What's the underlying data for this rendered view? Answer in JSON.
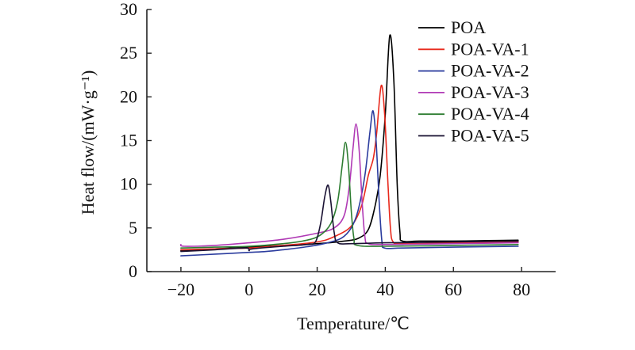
{
  "chart_data": {
    "type": "line",
    "xlabel": "Temperature/℃",
    "ylabel": "Heat flow/(mW·g⁻¹)",
    "xlim": [
      -30,
      90
    ],
    "ylim": [
      0,
      30
    ],
    "xticks": [
      -20,
      0,
      20,
      40,
      60,
      80
    ],
    "yticks": [
      0,
      5,
      10,
      15,
      20,
      25,
      30
    ],
    "xtick_labels": [
      "−20",
      "0",
      "20",
      "40",
      "60",
      "80"
    ],
    "ytick_labels": [
      "0",
      "5",
      "10",
      "15",
      "20",
      "25",
      "30"
    ],
    "grid": false,
    "legend": "top-right",
    "series": [
      {
        "name": "POA",
        "color": "#000000",
        "points": [
          [
            -20,
            2.4
          ],
          [
            -10,
            2.6
          ],
          [
            0,
            2.8
          ],
          [
            10,
            3.0
          ],
          [
            20,
            3.2
          ],
          [
            28,
            3.5
          ],
          [
            32,
            3.8
          ],
          [
            35,
            4.8
          ],
          [
            37,
            7.5
          ],
          [
            38.5,
            11
          ],
          [
            40,
            18
          ],
          [
            41.3,
            27.0
          ],
          [
            42.5,
            22
          ],
          [
            43.5,
            10
          ],
          [
            44.3,
            4.5
          ],
          [
            45,
            3.5
          ],
          [
            50,
            3.5
          ],
          [
            60,
            3.5
          ],
          [
            70,
            3.55
          ],
          [
            79,
            3.6
          ]
        ]
      },
      {
        "name": "POA-VA-1",
        "color": "#e8291c",
        "points": [
          [
            -20,
            2.5
          ],
          [
            -10,
            2.6
          ],
          [
            0,
            2.7
          ],
          [
            10,
            3.0
          ],
          [
            20,
            3.4
          ],
          [
            25,
            4.0
          ],
          [
            30,
            5.2
          ],
          [
            33,
            7.5
          ],
          [
            35,
            11
          ],
          [
            36.5,
            13
          ],
          [
            37.5,
            16
          ],
          [
            38.8,
            21.3
          ],
          [
            39.8,
            18
          ],
          [
            40.8,
            10
          ],
          [
            41.5,
            5
          ],
          [
            42.3,
            3.4
          ],
          [
            45,
            3.2
          ],
          [
            60,
            3.3
          ],
          [
            79,
            3.4
          ]
        ]
      },
      {
        "name": "POA-VA-2",
        "color": "#2b3c9e",
        "points": [
          [
            -20,
            1.8
          ],
          [
            -10,
            2.0
          ],
          [
            0,
            2.2
          ],
          [
            5,
            2.3
          ],
          [
            10,
            2.5
          ],
          [
            18,
            2.9
          ],
          [
            22,
            3.2
          ],
          [
            27,
            3.8
          ],
          [
            30,
            5.0
          ],
          [
            32,
            7.0
          ],
          [
            34,
            11
          ],
          [
            35.5,
            16
          ],
          [
            36.4,
            18.4
          ],
          [
            37.3,
            15
          ],
          [
            38.2,
            8
          ],
          [
            39,
            3.5
          ],
          [
            39.8,
            2.7
          ],
          [
            45,
            2.7
          ],
          [
            60,
            2.8
          ],
          [
            79,
            2.9
          ]
        ]
      },
      {
        "name": "POA-VA-3",
        "color": "#b03ab5",
        "points": [
          [
            -20,
            3.1
          ],
          [
            -19,
            2.9
          ],
          [
            -10,
            3.0
          ],
          [
            0,
            3.3
          ],
          [
            10,
            3.7
          ],
          [
            20,
            4.4
          ],
          [
            25,
            5.0
          ],
          [
            28,
            6.5
          ],
          [
            29.5,
            10
          ],
          [
            30.5,
            14
          ],
          [
            31.4,
            16.9
          ],
          [
            32.3,
            14
          ],
          [
            33.2,
            8
          ],
          [
            34,
            4.0
          ],
          [
            35,
            3.2
          ],
          [
            40,
            3.1
          ],
          [
            60,
            3.2
          ],
          [
            79,
            3.3
          ]
        ]
      },
      {
        "name": "POA-VA-4",
        "color": "#2e7d32",
        "points": [
          [
            -20,
            2.7
          ],
          [
            -10,
            2.8
          ],
          [
            0,
            2.9
          ],
          [
            10,
            3.2
          ],
          [
            17,
            3.6
          ],
          [
            21,
            4.2
          ],
          [
            24,
            5.5
          ],
          [
            26,
            8.0
          ],
          [
            27.3,
            12
          ],
          [
            28.3,
            14.8
          ],
          [
            29.2,
            12
          ],
          [
            30,
            7
          ],
          [
            30.8,
            3.8
          ],
          [
            31.8,
            3.0
          ],
          [
            40,
            2.9
          ],
          [
            60,
            3.0
          ],
          [
            79,
            3.1
          ]
        ]
      },
      {
        "name": "POA-VA-5",
        "color": "#1a1233",
        "points": [
          [
            -20,
            2.3
          ],
          [
            -10,
            2.5
          ],
          [
            -1,
            2.7
          ],
          [
            0,
            2.4
          ],
          [
            1,
            2.6
          ],
          [
            10,
            2.9
          ],
          [
            17,
            3.1
          ],
          [
            19.5,
            3.4
          ],
          [
            21,
            5.5
          ],
          [
            22.2,
            8.5
          ],
          [
            23.2,
            9.9
          ],
          [
            24,
            8
          ],
          [
            25,
            4.5
          ],
          [
            26,
            3.3
          ],
          [
            30,
            3.2
          ],
          [
            40,
            3.3
          ],
          [
            60,
            3.4
          ],
          [
            79,
            3.5
          ]
        ]
      }
    ]
  }
}
